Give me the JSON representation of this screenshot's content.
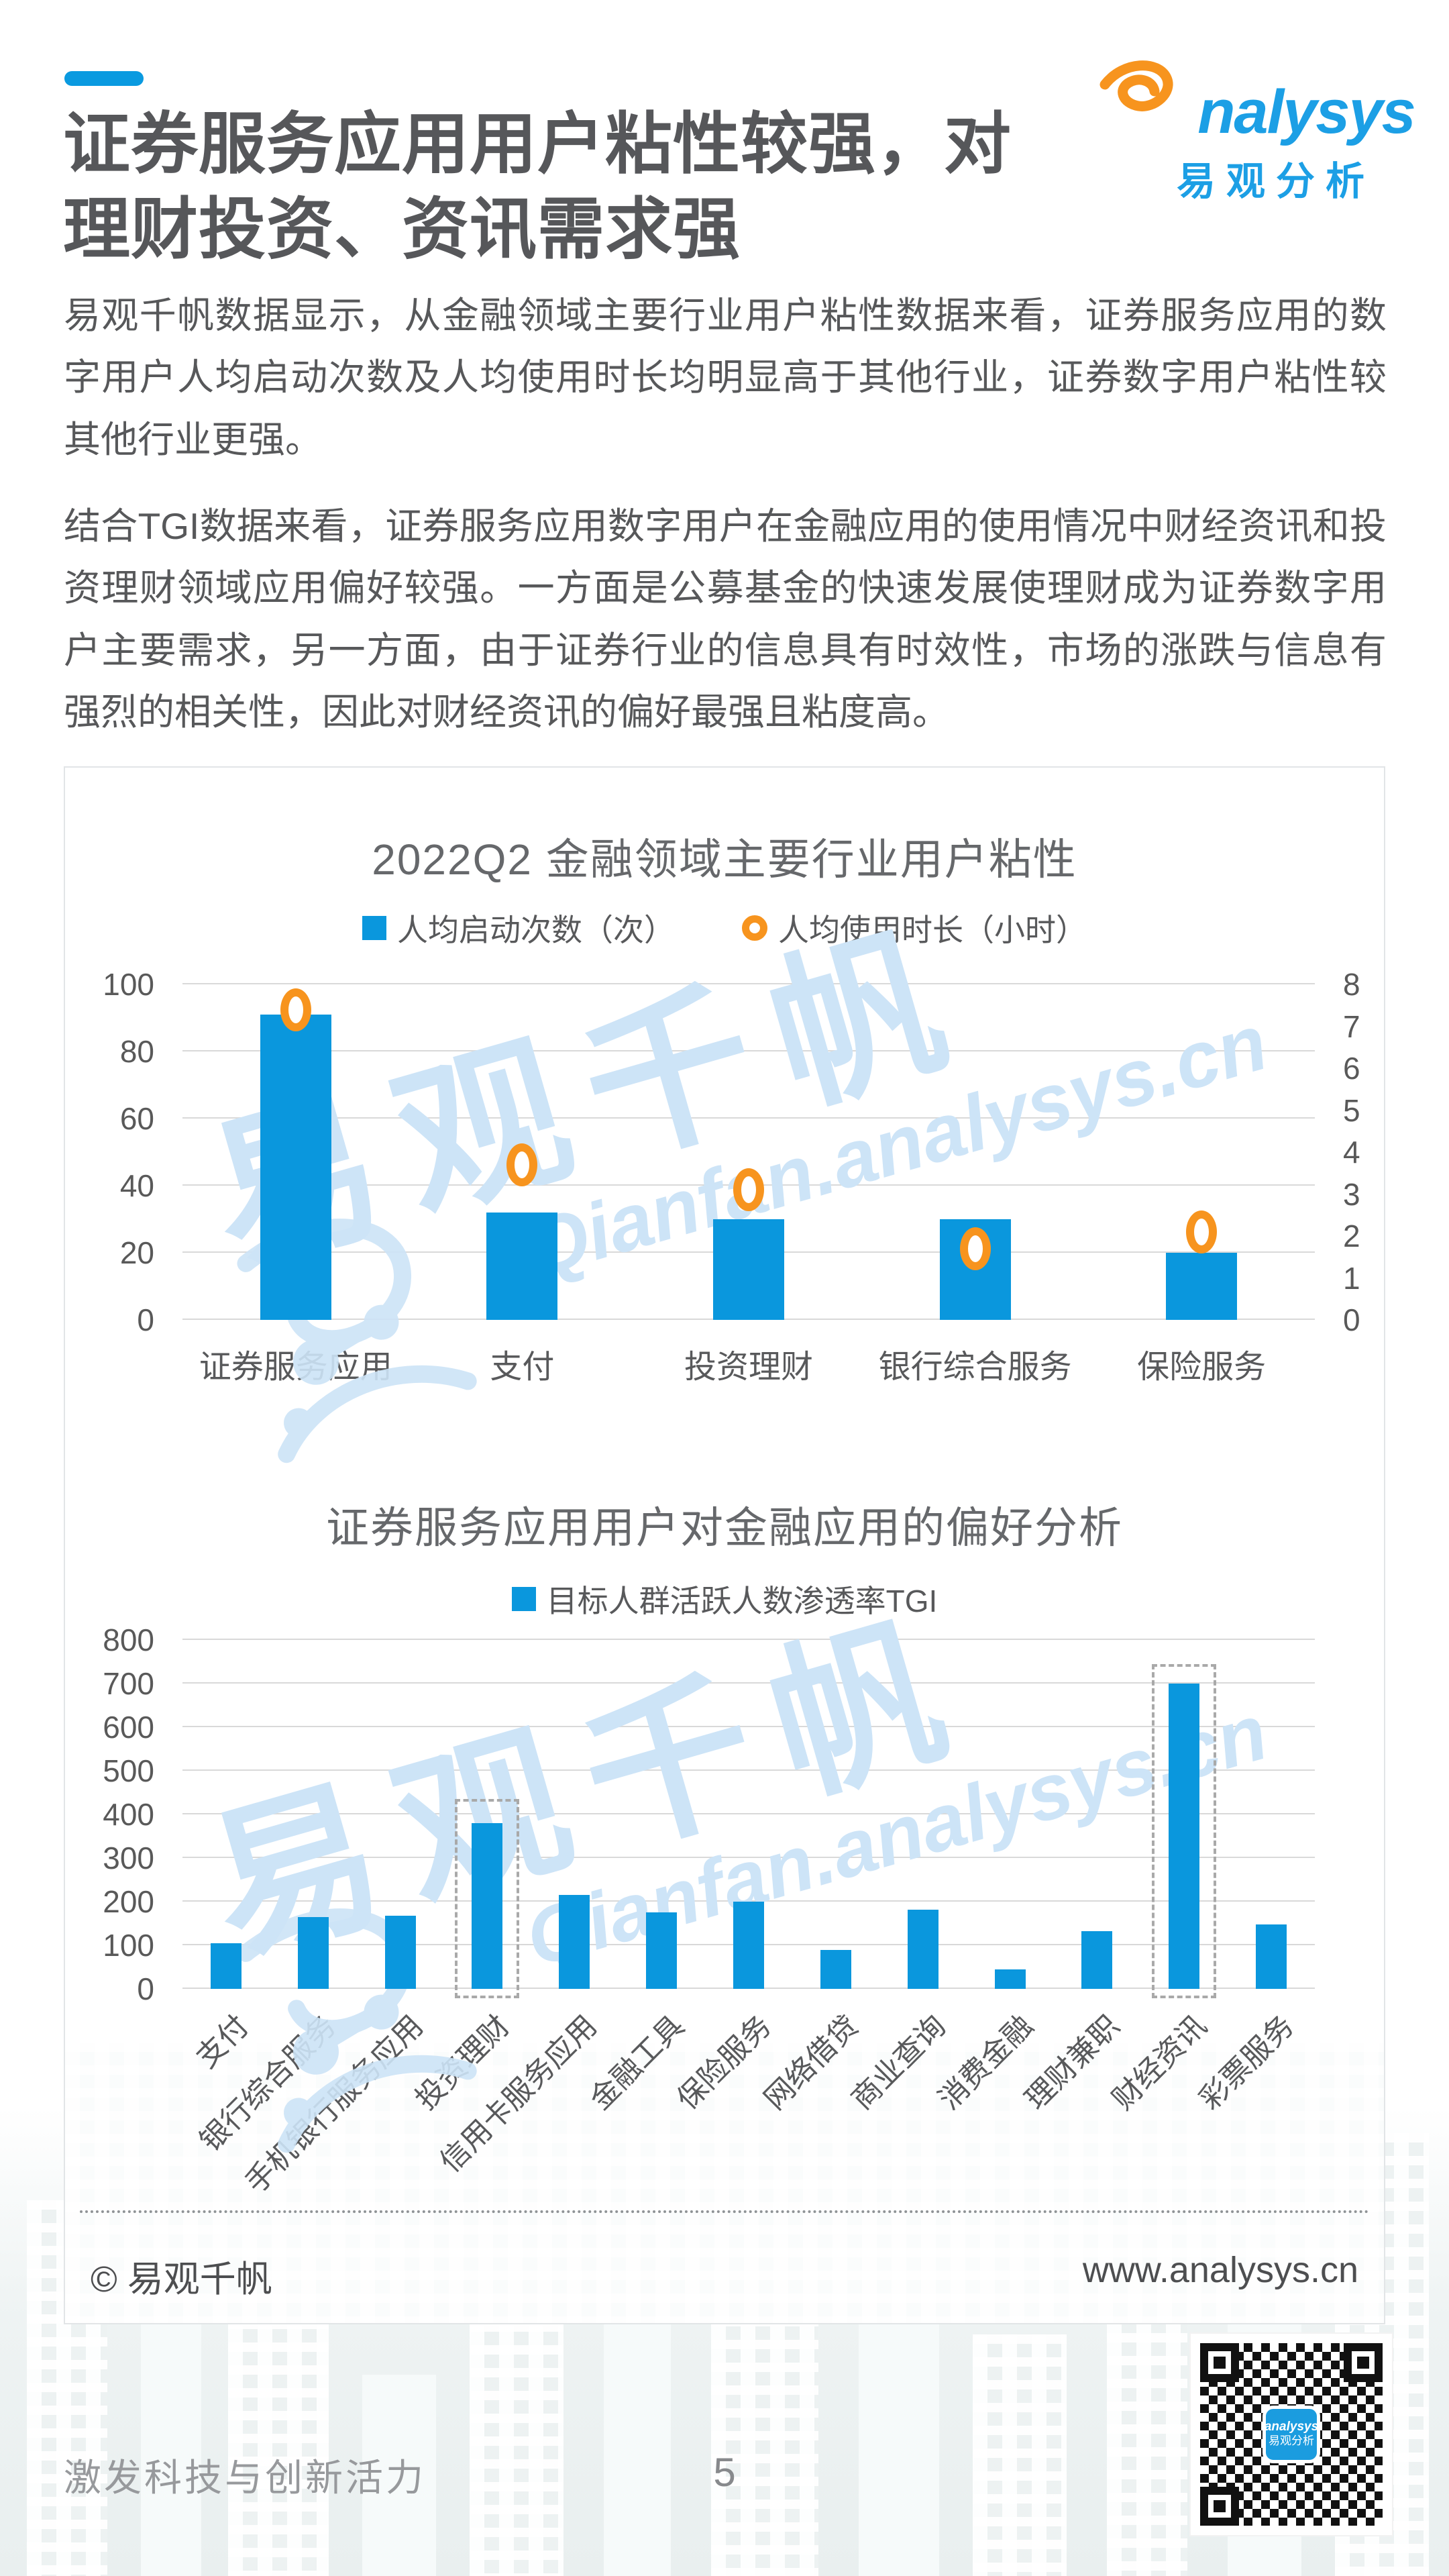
{
  "page": {
    "title_line1": "证券服务应用用户粘性较强，对",
    "title_line2": "理财投资、资讯需求强",
    "logo": {
      "brand_text": "nalysys",
      "brand_cn": "易观分析"
    },
    "paragraph1": "易观千帆数据显示，从金融领域主要行业用户粘性数据来看，证券服务应用的数字用户人均启动次数及人均使用时长均明显高于其他行业，证券数字用户粘性较其他行业更强。",
    "paragraph2": "结合TGI数据来看，证券服务应用数字用户在金融应用的使用情况中财经资讯和投资理财领域应用偏好较强。一方面是公募基金的快速发展使理财成为证券数字用户主要需求，另一方面，由于证券行业的信息具有时效性，市场的涨跌与信息有强烈的相关性，因此对财经资讯的偏好最强且粘度高。",
    "watermark": {
      "cn": "易观千帆",
      "en": "Qianfan.analysys.cn"
    },
    "card_footer": {
      "copyright": "© 易观千帆",
      "website": "www.analysys.cn"
    },
    "footer": {
      "slogan": "激发科技与创新活力",
      "page_number": "5"
    },
    "qr_badge": {
      "line1": "analysys",
      "line2": "易观分析"
    },
    "colors": {
      "accent_blue": "#0a9ae0",
      "bar_blue": "#0a97dd",
      "point_orange": "#f7941e",
      "logo_blue": "#1c9fe5",
      "logo_orange": "#f7941e"
    }
  },
  "chart_data": [
    {
      "type": "bar",
      "title": "2022Q2 金融领域主要行业用户粘性",
      "categories": [
        "证券服务应用",
        "支付",
        "投资理财",
        "银行综合服务",
        "保险服务"
      ],
      "series": [
        {
          "name": "人均启动次数（次）",
          "type": "bar",
          "axis": "left",
          "color": "#0a97dd",
          "values": [
            91,
            32,
            30,
            30,
            20
          ]
        },
        {
          "name": "人均使用时长（小时）",
          "type": "point",
          "axis": "right",
          "color": "#f7941e",
          "values": [
            7.4,
            3.7,
            3.1,
            1.7,
            2.1
          ]
        }
      ],
      "left_axis": {
        "min": 0,
        "max": 100,
        "ticks": [
          0,
          20,
          40,
          60,
          80,
          100
        ]
      },
      "right_axis": {
        "min": 0,
        "max": 8,
        "ticks": [
          0,
          1,
          2,
          3,
          4,
          5,
          6,
          7,
          8
        ]
      },
      "grid": true,
      "legend_position": "top"
    },
    {
      "type": "bar",
      "title": "证券服务应用用户对金融应用的偏好分析",
      "legend": [
        "目标人群活跃人数渗透率TGI"
      ],
      "categories": [
        "支付",
        "银行综合服务",
        "手机银行服务应用",
        "投资理财",
        "信用卡服务应用",
        "金融工具",
        "保险服务",
        "网络借贷",
        "商业查询",
        "消费金融",
        "理财兼职",
        "财经资讯",
        "彩票服务"
      ],
      "values": [
        105,
        165,
        168,
        380,
        215,
        175,
        200,
        90,
        182,
        45,
        132,
        700,
        148
      ],
      "ylim": [
        0,
        800
      ],
      "yticks": [
        0,
        100,
        200,
        300,
        400,
        500,
        600,
        700,
        800
      ],
      "bar_color": "#0a97dd",
      "highlights": [
        {
          "index": 3,
          "box_top": 435
        },
        {
          "index": 11,
          "box_top": 745
        }
      ],
      "grid": true,
      "legend_position": "top"
    }
  ]
}
